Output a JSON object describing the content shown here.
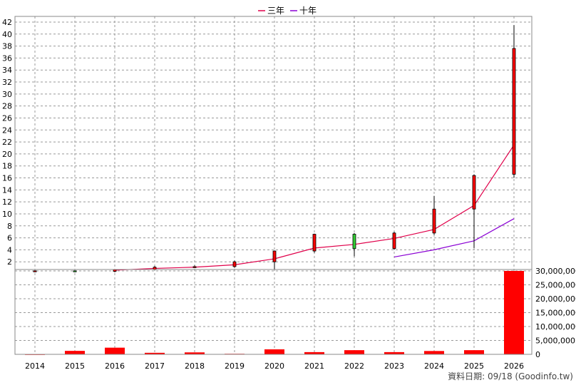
{
  "legend": [
    {
      "label": "三年",
      "color": "#e0004a"
    },
    {
      "label": "十年",
      "color": "#8a00d4"
    }
  ],
  "footer": "資料日期: 09/18  (Goodinfo.tw)",
  "colors": {
    "up": "#ff0000",
    "down": "#33cc33",
    "ma3": "#e0004a",
    "ma10": "#8a00d4",
    "volume": "#ff0000",
    "grid": "#999999"
  },
  "chart_data": {
    "type": "candlestick",
    "categories": [
      "2014",
      "2015",
      "2016",
      "2017",
      "2018",
      "2019",
      "2020",
      "2021",
      "2022",
      "2023",
      "2024",
      "2025",
      "2026"
    ],
    "price_axis": {
      "ylim": [
        0,
        42
      ],
      "ticks": [
        2,
        4,
        6,
        8,
        10,
        12,
        14,
        16,
        18,
        20,
        22,
        24,
        26,
        28,
        30,
        32,
        34,
        36,
        38,
        40,
        42
      ]
    },
    "volume_axis": {
      "ylim": [
        0,
        30000000
      ],
      "ticks": [
        0,
        5000000,
        10000000,
        15000000,
        20000000,
        25000000,
        30000000
      ],
      "tick_labels": [
        "0",
        "5,000,000",
        "10,000,000",
        "15,000,000",
        "20,000,000",
        "25,000,000",
        "30,000,000"
      ]
    },
    "candles": [
      {
        "year": "2014",
        "open": 0.45,
        "high": 0.55,
        "low": 0.35,
        "close": 0.5
      },
      {
        "year": "2015",
        "open": 0.5,
        "high": 0.55,
        "low": 0.3,
        "close": 0.4
      },
      {
        "year": "2016",
        "open": 0.4,
        "high": 0.75,
        "low": 0.25,
        "close": 0.7
      },
      {
        "year": "2017",
        "open": 0.7,
        "high": 1.3,
        "low": 0.6,
        "close": 1.1
      },
      {
        "year": "2018",
        "open": 1.1,
        "high": 1.4,
        "low": 0.95,
        "close": 1.2
      },
      {
        "year": "2019",
        "open": 1.2,
        "high": 2.2,
        "low": 1.0,
        "close": 2.0
      },
      {
        "year": "2020",
        "open": 2.0,
        "high": 3.9,
        "low": 0.7,
        "close": 3.8
      },
      {
        "year": "2021",
        "open": 3.8,
        "high": 6.7,
        "low": 3.5,
        "close": 6.6
      },
      {
        "year": "2022",
        "open": 6.6,
        "high": 6.8,
        "low": 2.9,
        "close": 4.2
      },
      {
        "year": "2023",
        "open": 4.2,
        "high": 7.0,
        "low": 4.0,
        "close": 6.8
      },
      {
        "year": "2024",
        "open": 6.8,
        "high": 13.0,
        "low": 6.5,
        "close": 10.8
      },
      {
        "year": "2025",
        "open": 10.8,
        "high": 16.6,
        "low": 4.3,
        "close": 16.4
      },
      {
        "year": "2026",
        "open": 16.6,
        "high": 41.5,
        "low": 16.0,
        "close": 37.6
      }
    ],
    "series": [
      {
        "name": "三年",
        "values": [
          null,
          null,
          0.6,
          0.9,
          1.1,
          1.5,
          2.5,
          4.3,
          4.9,
          5.9,
          7.4,
          11.4,
          21.5
        ]
      },
      {
        "name": "十年",
        "values": [
          null,
          null,
          null,
          null,
          null,
          null,
          null,
          null,
          null,
          2.8,
          4.0,
          5.5,
          9.2
        ]
      }
    ],
    "volume": [
      50000,
      1250000,
      2400000,
      550000,
      700000,
      200000,
      1800000,
      800000,
      1500000,
      800000,
      1200000,
      1500000,
      30000000
    ]
  }
}
